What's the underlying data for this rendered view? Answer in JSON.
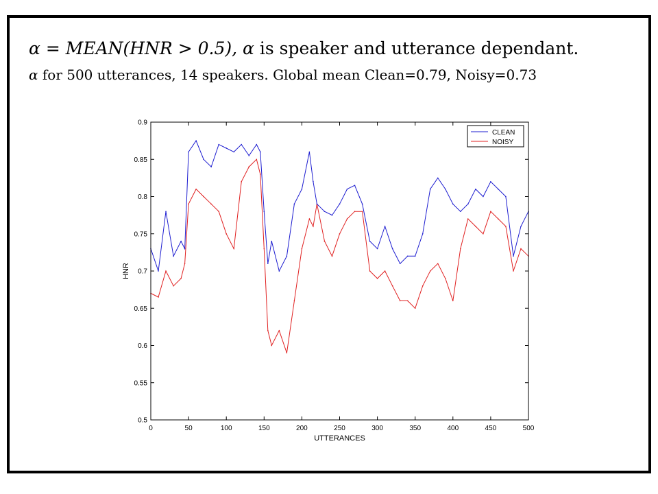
{
  "slide": {
    "line1_math": "α = MEAN(HNR > 0.5),",
    "line1_alpha": "α",
    "line1_text": " is speaker and utterance dependant.",
    "line2_alpha": "α",
    "line2_text": " for 500 utterances, 14 speakers. Global mean Clean=0.79, Noisy=0.73"
  },
  "colors": {
    "clean": "#1c1cd0",
    "noisy": "#e02020",
    "axis": "#000000"
  },
  "chart_data": {
    "type": "line",
    "title": "",
    "xlabel": "UTTERANCES",
    "ylabel": "HNR",
    "xlim": [
      0,
      500
    ],
    "ylim": [
      0.5,
      0.9
    ],
    "xticks": [
      0,
      50,
      100,
      150,
      200,
      250,
      300,
      350,
      400,
      450,
      500
    ],
    "yticks": [
      0.5,
      0.55,
      0.6,
      0.65,
      0.7,
      0.75,
      0.8,
      0.85,
      0.9
    ],
    "ytick_labels": [
      "0.5",
      "0.55",
      "0.6",
      "0.65",
      "0.7",
      "0.75",
      "0.8",
      "0.85",
      "0.9"
    ],
    "legend_position": "top-right",
    "x": [
      0,
      10,
      20,
      30,
      40,
      45,
      50,
      60,
      70,
      80,
      90,
      100,
      110,
      120,
      130,
      140,
      145,
      150,
      155,
      160,
      170,
      180,
      190,
      200,
      210,
      215,
      220,
      230,
      240,
      250,
      260,
      270,
      280,
      290,
      300,
      310,
      320,
      330,
      340,
      350,
      360,
      370,
      380,
      390,
      400,
      410,
      420,
      430,
      440,
      450,
      460,
      470,
      480,
      490,
      500
    ],
    "series": [
      {
        "name": "CLEAN",
        "values": [
          0.73,
          0.7,
          0.78,
          0.72,
          0.74,
          0.73,
          0.86,
          0.875,
          0.85,
          0.84,
          0.87,
          0.865,
          0.86,
          0.87,
          0.855,
          0.87,
          0.86,
          0.78,
          0.71,
          0.74,
          0.7,
          0.72,
          0.79,
          0.81,
          0.86,
          0.82,
          0.79,
          0.78,
          0.775,
          0.79,
          0.81,
          0.815,
          0.79,
          0.74,
          0.73,
          0.76,
          0.73,
          0.71,
          0.72,
          0.72,
          0.75,
          0.81,
          0.825,
          0.81,
          0.79,
          0.78,
          0.79,
          0.81,
          0.8,
          0.82,
          0.81,
          0.8,
          0.72,
          0.76,
          0.78
        ]
      },
      {
        "name": "NOISY",
        "values": [
          0.67,
          0.665,
          0.7,
          0.68,
          0.69,
          0.71,
          0.79,
          0.81,
          0.8,
          0.79,
          0.78,
          0.75,
          0.73,
          0.82,
          0.84,
          0.85,
          0.83,
          0.73,
          0.62,
          0.6,
          0.62,
          0.59,
          0.66,
          0.73,
          0.77,
          0.76,
          0.79,
          0.74,
          0.72,
          0.75,
          0.77,
          0.78,
          0.78,
          0.7,
          0.69,
          0.7,
          0.68,
          0.66,
          0.66,
          0.65,
          0.68,
          0.7,
          0.71,
          0.69,
          0.66,
          0.73,
          0.77,
          0.76,
          0.75,
          0.78,
          0.77,
          0.76,
          0.7,
          0.73,
          0.72
        ]
      }
    ]
  }
}
